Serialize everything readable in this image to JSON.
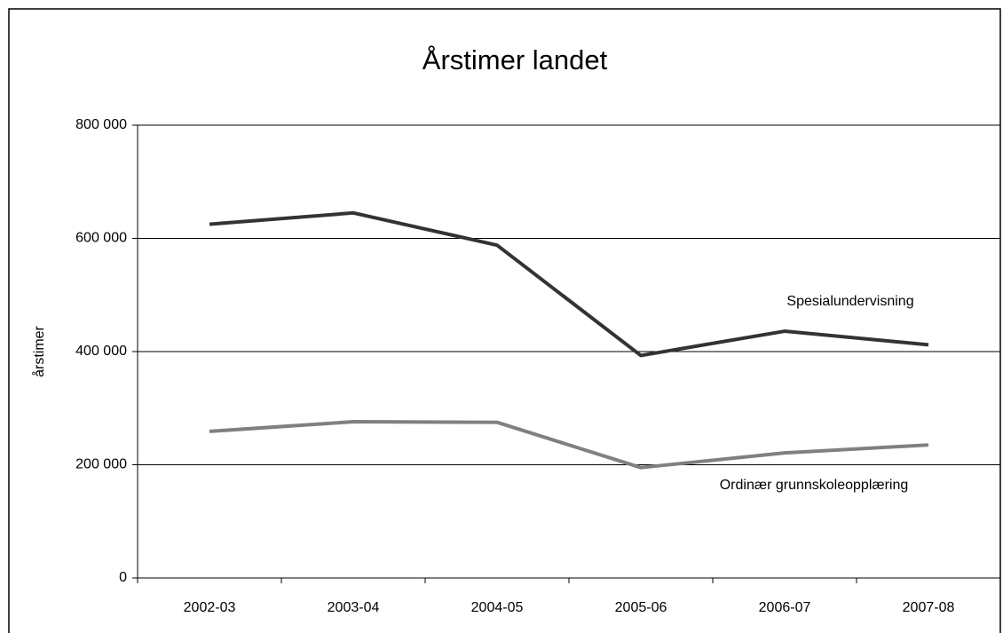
{
  "chart_data": {
    "type": "line",
    "title": "Årstimer landet",
    "y_label": "årstimer",
    "categories": [
      "2002-03",
      "2003-04",
      "2004-05",
      "2005-06",
      "2006-07",
      "2007-08"
    ],
    "series": [
      {
        "name": "Spesialundervisning",
        "color": "#333333",
        "values": [
          625000,
          645000,
          588000,
          393000,
          436000,
          412000
        ]
      },
      {
        "name": "Ordinær grunnskoleopplæring",
        "color": "#808080",
        "values": [
          259000,
          276000,
          275000,
          195000,
          221000,
          235000
        ]
      }
    ],
    "ylim": [
      0,
      800000
    ],
    "yticks": [
      0,
      {
        "value": 200000,
        "label": "200 000"
      },
      {
        "value": 400000,
        "label": "400 000"
      },
      {
        "value": 600000,
        "label": "600 000"
      },
      {
        "value": 800000,
        "label": "800 000"
      }
    ],
    "grid": true
  }
}
